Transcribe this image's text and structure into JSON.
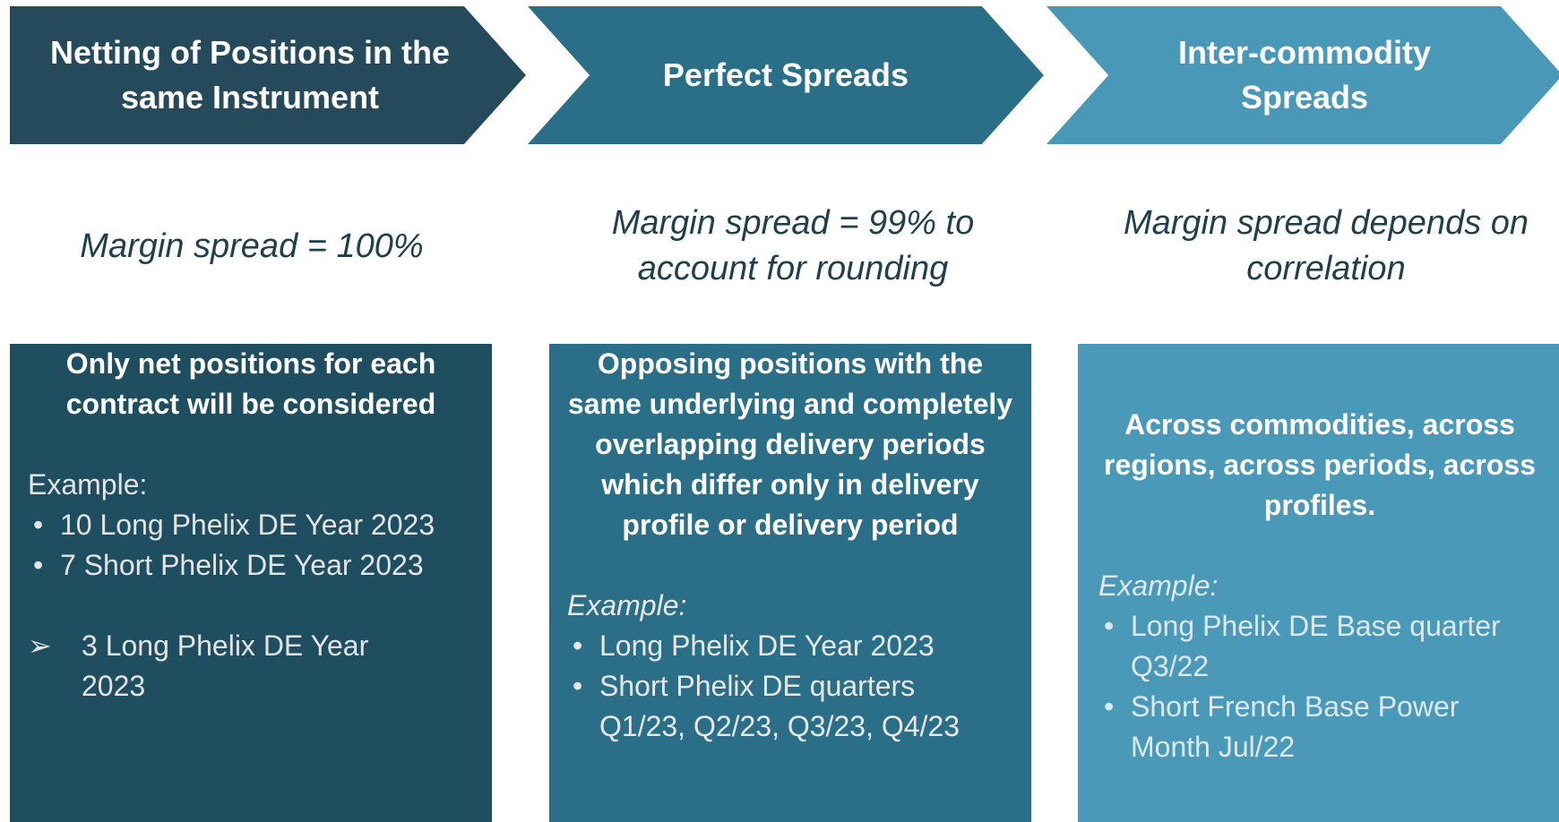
{
  "columns": [
    {
      "header": "Netting of Positions in the same Instrument",
      "subtitle": "Margin spread = 100%",
      "box": {
        "title": "Only net positions for each contract will be considered",
        "example_label": "Example:",
        "bullets": [
          "10 Long Phelix DE Year 2023",
          "7 Short Phelix DE Year 2023"
        ],
        "result": "3 Long Phelix DE Year 2023"
      }
    },
    {
      "header": "Perfect Spreads",
      "subtitle": "Margin spread = 99% to account for rounding",
      "box": {
        "title": "Opposing positions with the same underlying and completely overlapping delivery periods which differ only in delivery profile or delivery period",
        "example_label": "Example:",
        "bullets": [
          "Long Phelix DE Year 2023",
          "Short Phelix DE quarters Q1/23, Q2/23, Q3/23, Q4/23"
        ]
      }
    },
    {
      "header": "Inter-commodity Spreads",
      "subtitle": "Margin spread depends on correlation",
      "box": {
        "title": "Across commodities, across regions, across periods, across profiles.",
        "example_label": "Example:",
        "bullets": [
          "Long Phelix DE Base quarter Q3/22",
          "Short French Base Power Month Jul/22"
        ]
      }
    }
  ]
}
